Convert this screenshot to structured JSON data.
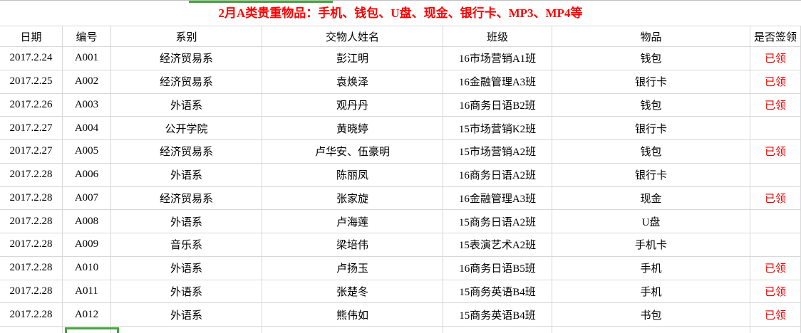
{
  "title": "2月A类贵重物品：手机、钱包、U盘、现金、银行卡、MP3、MP4等",
  "columns": [
    {
      "key": "date",
      "label": "日期"
    },
    {
      "key": "id",
      "label": "编号"
    },
    {
      "key": "dept",
      "label": "系别"
    },
    {
      "key": "name",
      "label": "交物人姓名"
    },
    {
      "key": "class",
      "label": "班级"
    },
    {
      "key": "item",
      "label": "物品"
    },
    {
      "key": "status",
      "label": "是否签领"
    }
  ],
  "status_claimed_label": "已领",
  "rows": [
    {
      "date": "2017.2.24",
      "id": "A001",
      "dept": "经济贸易系",
      "name": "彭江明",
      "class": "16市场营销A1班",
      "item": "钱包",
      "status": "已领"
    },
    {
      "date": "2017.2.25",
      "id": "A002",
      "dept": "经济贸易系",
      "name": "袁焕泽",
      "class": "16金融管理A3班",
      "item": "银行卡",
      "status": "已领"
    },
    {
      "date": "2017.2.26",
      "id": "A003",
      "dept": "外语系",
      "name": "观丹丹",
      "class": "16商务日语B2班",
      "item": "钱包",
      "status": "已领"
    },
    {
      "date": "2017.2.27",
      "id": "A004",
      "dept": "公开学院",
      "name": "黄晓婷",
      "class": "15市场营销K2班",
      "item": "银行卡",
      "status": ""
    },
    {
      "date": "2017.2.27",
      "id": "A005",
      "dept": "经济贸易系",
      "name": "卢华安、伍豪明",
      "class": "15市场营销A2班",
      "item": "钱包",
      "status": "已领"
    },
    {
      "date": "2017.2.28",
      "id": "A006",
      "dept": "外语系",
      "name": "陈丽凤",
      "class": "16商务日语A2班",
      "item": "银行卡",
      "status": ""
    },
    {
      "date": "2017.2.28",
      "id": "A007",
      "dept": "经济贸易系",
      "name": "张家旋",
      "class": "16金融管理A3班",
      "item": "现金",
      "status": "已领"
    },
    {
      "date": "2017.2.28",
      "id": "A008",
      "dept": "外语系",
      "name": "卢海莲",
      "class": "15商务日语A2班",
      "item": "U盘",
      "status": ""
    },
    {
      "date": "2017.2.28",
      "id": "A009",
      "dept": "音乐系",
      "name": "梁培伟",
      "class": "15表演艺术A2班",
      "item": "手机卡",
      "status": ""
    },
    {
      "date": "2017.2.28",
      "id": "A010",
      "dept": "外语系",
      "name": "卢扬玉",
      "class": "16商务日语B5班",
      "item": "手机",
      "status": "已领"
    },
    {
      "date": "2017.2.28",
      "id": "A011",
      "dept": "外语系",
      "name": "张楚冬",
      "class": "15商务英语B4班",
      "item": "手机",
      "status": "已领"
    },
    {
      "date": "2017.2.28",
      "id": "A012",
      "dept": "外语系",
      "name": "熊伟如",
      "class": "15商务英语B4班",
      "item": "书包",
      "status": "已领"
    }
  ],
  "colors": {
    "title_red": "#fe0000",
    "status_red": "#e60000",
    "gridline": "#d8d8d8",
    "selection_green": "#44a63c"
  }
}
